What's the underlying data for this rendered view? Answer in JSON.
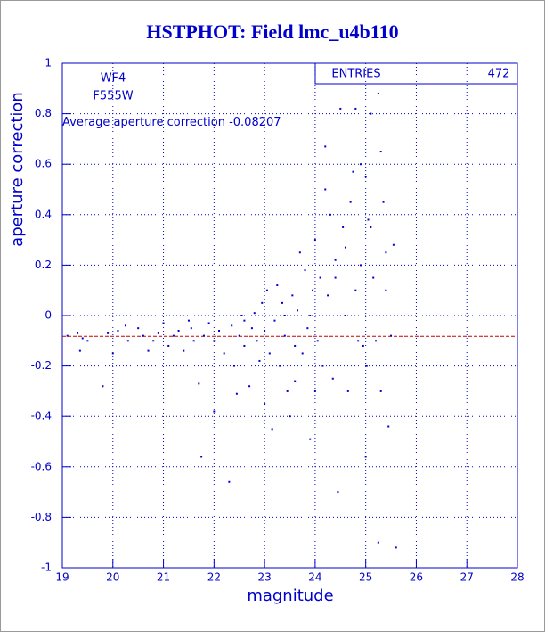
{
  "chart_data": {
    "type": "scatter",
    "title": "HSTPHOT: Field lmc_u4b110",
    "x_label": "magnitude",
    "y_label": "aperture correction",
    "annotations": [
      "WF4",
      "F555W"
    ],
    "mean_label": "Average aperture correction",
    "mean": -0.08207,
    "mean_color": "#cc0000",
    "entries_label": "ENTRIES",
    "entries": 472,
    "color": "#0000cc",
    "grid": true,
    "xlim": [
      19,
      28
    ],
    "xticks": [
      19,
      20,
      21,
      22,
      23,
      24,
      25,
      26,
      27,
      28
    ],
    "ylim": [
      -1,
      1
    ],
    "yticks": [
      -1,
      -0.8,
      -0.6,
      -0.4,
      -0.2,
      0,
      0.2,
      0.4,
      0.6,
      0.8,
      1
    ],
    "x": [
      19.1,
      19.3,
      19.4,
      19.5,
      19.35,
      19.8,
      19.9,
      20.0,
      20.1,
      20.25,
      20.3,
      20.5,
      20.6,
      20.7,
      20.8,
      20.9,
      21.0,
      21.1,
      21.2,
      21.3,
      21.4,
      21.5,
      21.55,
      21.6,
      21.7,
      21.75,
      21.8,
      21.9,
      22.0,
      22.1,
      22.2,
      22.3,
      22.35,
      22.4,
      22.45,
      22.5,
      22.55,
      22.6,
      22.7,
      22.75,
      22.8,
      22.85,
      22.9,
      22.95,
      23.0,
      23.05,
      23.1,
      23.15,
      23.2,
      23.25,
      23.3,
      23.35,
      23.4,
      23.45,
      23.5,
      23.55,
      23.6,
      23.65,
      23.7,
      23.75,
      23.8,
      23.85,
      23.9,
      23.95,
      24.0,
      24.05,
      24.1,
      24.15,
      24.2,
      24.25,
      24.3,
      24.35,
      24.4,
      24.45,
      24.5,
      24.55,
      24.6,
      24.65,
      24.7,
      24.75,
      24.8,
      24.85,
      24.9,
      24.95,
      25.0,
      25.0,
      25.02,
      25.05,
      25.1,
      25.15,
      25.2,
      25.25,
      25.3,
      25.3,
      25.35,
      25.4,
      25.45,
      25.5,
      25.55,
      25.6,
      25.25,
      24.6,
      24.4,
      24.2,
      24.0,
      23.6,
      22.6,
      23.9,
      24.8,
      25.1,
      23.4,
      23.0,
      22.0,
      24.9,
      25.4
    ],
    "values": [
      -0.08,
      -0.07,
      -0.09,
      -0.1,
      -0.14,
      -0.28,
      -0.07,
      -0.15,
      -0.06,
      -0.04,
      -0.1,
      -0.05,
      -0.08,
      -0.14,
      -0.1,
      -0.07,
      -0.03,
      -0.12,
      -0.08,
      -0.06,
      -0.14,
      -0.02,
      -0.05,
      -0.1,
      -0.27,
      -0.56,
      -0.08,
      -0.03,
      -0.1,
      -0.06,
      -0.15,
      -0.66,
      -0.04,
      -0.2,
      -0.31,
      -0.08,
      0.0,
      -0.12,
      -0.28,
      -0.05,
      0.01,
      -0.1,
      -0.18,
      0.05,
      -0.06,
      0.1,
      -0.15,
      -0.45,
      -0.02,
      0.12,
      -0.2,
      0.05,
      -0.08,
      -0.3,
      -0.4,
      0.08,
      -0.12,
      0.02,
      0.25,
      -0.15,
      0.18,
      -0.05,
      -0.49,
      0.1,
      0.3,
      -0.1,
      0.15,
      -0.2,
      0.67,
      0.08,
      0.4,
      -0.25,
      0.22,
      -0.7,
      0.82,
      0.35,
      0.0,
      -0.3,
      0.45,
      0.57,
      0.82,
      -0.1,
      0.2,
      -0.12,
      0.55,
      -0.56,
      -0.2,
      0.38,
      0.8,
      0.15,
      -0.1,
      0.88,
      0.65,
      -0.3,
      0.45,
      0.25,
      -0.44,
      -0.08,
      0.28,
      -0.92,
      -0.9,
      0.27,
      0.15,
      0.5,
      -0.3,
      -0.26,
      -0.02,
      0.0,
      0.1,
      0.35,
      0.0,
      -0.35,
      -0.38,
      0.6,
      0.1
    ]
  }
}
